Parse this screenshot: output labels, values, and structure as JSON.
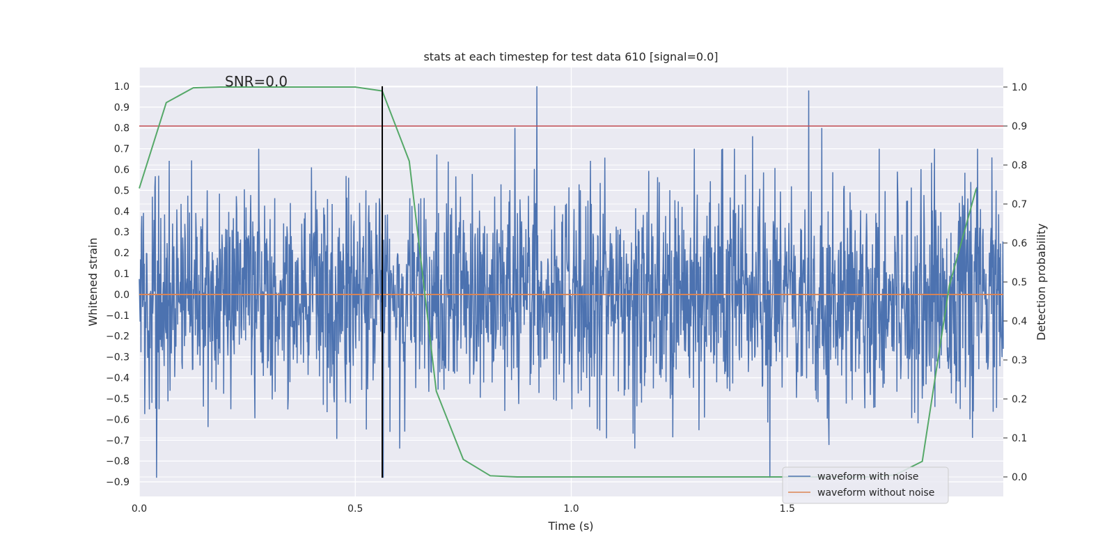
{
  "chart_data": {
    "type": "line",
    "title": "stats at each timestep for test data 610 [signal=0.0]",
    "xlabel": "Time (s)",
    "ylabel": "Whitened strain",
    "y2label": "Detection probability",
    "annotation": "SNR=0.0",
    "xlim": [
      0.0,
      2.0
    ],
    "ylim": [
      -0.97,
      1.09
    ],
    "y2lim": [
      -0.05,
      1.05
    ],
    "xticks": [
      "0.0",
      "0.5",
      "1.0",
      "1.5"
    ],
    "xtick_values": [
      0.0,
      0.5,
      1.0,
      1.5
    ],
    "yticks": [
      "−0.9",
      "−0.8",
      "−0.7",
      "−0.6",
      "−0.5",
      "−0.4",
      "−0.3",
      "−0.2",
      "−0.1",
      "0.0",
      "0.1",
      "0.2",
      "0.3",
      "0.4",
      "0.5",
      "0.6",
      "0.7",
      "0.8",
      "0.9",
      "1.0"
    ],
    "ytick_values": [
      -0.9,
      -0.8,
      -0.7,
      -0.6,
      -0.5,
      -0.4,
      -0.3,
      -0.2,
      -0.1,
      0.0,
      0.1,
      0.2,
      0.3,
      0.4,
      0.5,
      0.6,
      0.7,
      0.8,
      0.9,
      1.0
    ],
    "y2ticks": [
      "0.0",
      "0.1",
      "0.2",
      "0.3",
      "0.4",
      "0.5",
      "0.6",
      "0.7",
      "0.8",
      "0.9",
      "1.0"
    ],
    "y2tick_values": [
      0.0,
      0.1,
      0.2,
      0.3,
      0.4,
      0.5,
      0.6,
      0.7,
      0.8,
      0.9,
      1.0
    ],
    "grid": true,
    "legend_position": "lower-right",
    "series": [
      {
        "name": "waveform with noise",
        "color": "#4c72b0",
        "kind": "noise",
        "n_samples": 2048,
        "amplitude_std": 0.26,
        "extremes": [
          [
            0.92,
            1.0
          ],
          [
            1.55,
            0.98
          ],
          [
            0.04,
            -0.88
          ],
          [
            1.46,
            -0.88
          ],
          [
            0.565,
            0.9
          ],
          [
            0.565,
            -0.88
          ],
          [
            0.87,
            0.8
          ],
          [
            1.42,
            0.76
          ],
          [
            1.58,
            0.8
          ],
          [
            0.58,
            -0.66
          ]
        ]
      },
      {
        "name": "waveform without noise",
        "color": "#dd8452",
        "kind": "line",
        "x": [
          0.0,
          2.0
        ],
        "y": [
          0.0,
          0.0
        ]
      },
      {
        "name": "",
        "color": "#55a868",
        "axis": "right",
        "kind": "line",
        "x": [
          0.0,
          0.0625,
          0.125,
          0.1875,
          0.25,
          0.3125,
          0.375,
          0.4375,
          0.5,
          0.5625,
          0.625,
          0.6875,
          0.75,
          0.8125,
          0.875,
          0.9375,
          1.0,
          1.0625,
          1.125,
          1.1875,
          1.25,
          1.3125,
          1.375,
          1.4375,
          1.5,
          1.5625,
          1.625,
          1.6875,
          1.75,
          1.8125,
          1.875,
          1.9375
        ],
        "y": [
          0.74,
          0.96,
          0.998,
          1.0,
          1.0,
          1.0,
          1.0,
          1.0,
          1.0,
          0.99,
          0.81,
          0.22,
          0.045,
          0.003,
          0.0,
          0.0,
          0.0,
          0.0,
          0.0,
          0.0,
          0.0,
          0.0,
          0.0,
          0.0,
          0.0,
          0.0,
          0.0,
          0.0,
          0.005,
          0.04,
          0.49,
          0.74
        ]
      }
    ],
    "hlines": [
      {
        "axis": "right",
        "y": 0.9,
        "color": "#c44e52"
      }
    ],
    "vlines": [
      {
        "x": 0.5625,
        "ymin": -0.88,
        "ymax": 1.0,
        "color": "#000000"
      }
    ]
  }
}
